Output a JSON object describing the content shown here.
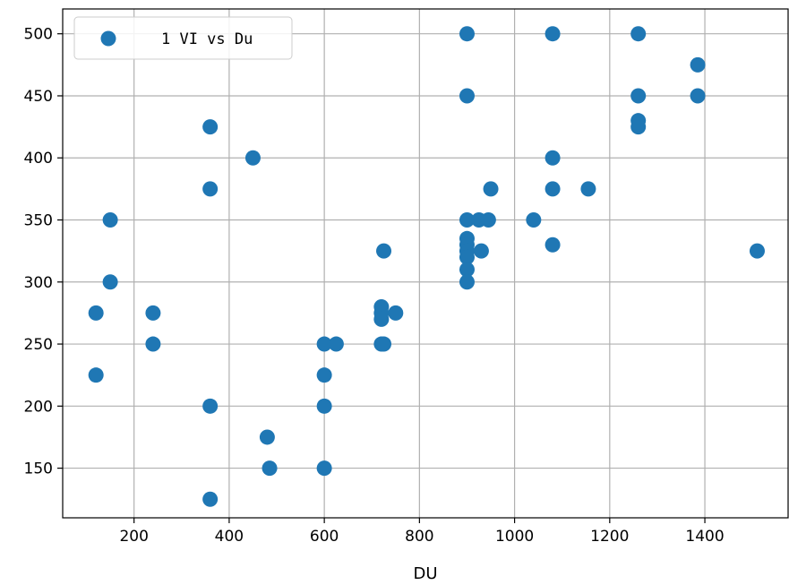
{
  "chart_data": {
    "type": "scatter",
    "title": "",
    "xlabel": "DU",
    "ylabel": "",
    "xlim": [
      50,
      1575
    ],
    "ylim": [
      110,
      520
    ],
    "xticks": [
      200,
      400,
      600,
      800,
      1000,
      1200,
      1400
    ],
    "yticks": [
      150,
      200,
      250,
      300,
      350,
      400,
      450,
      500
    ],
    "grid": true,
    "legend_position": "top-left",
    "series": [
      {
        "name": "1 VI vs Du",
        "color": "#1f77b4",
        "marker": "circle",
        "points": [
          [
            120,
            275
          ],
          [
            120,
            225
          ],
          [
            150,
            350
          ],
          [
            150,
            300
          ],
          [
            240,
            275
          ],
          [
            240,
            250
          ],
          [
            360,
            425
          ],
          [
            360,
            375
          ],
          [
            360,
            200
          ],
          [
            360,
            125
          ],
          [
            450,
            400
          ],
          [
            480,
            175
          ],
          [
            485,
            150
          ],
          [
            600,
            250
          ],
          [
            600,
            225
          ],
          [
            600,
            200
          ],
          [
            600,
            150
          ],
          [
            625,
            250
          ],
          [
            720,
            280
          ],
          [
            720,
            275
          ],
          [
            720,
            270
          ],
          [
            720,
            250
          ],
          [
            725,
            250
          ],
          [
            725,
            325
          ],
          [
            750,
            275
          ],
          [
            900,
            500
          ],
          [
            900,
            450
          ],
          [
            900,
            350
          ],
          [
            900,
            335
          ],
          [
            900,
            330
          ],
          [
            900,
            325
          ],
          [
            900,
            320
          ],
          [
            900,
            310
          ],
          [
            900,
            300
          ],
          [
            925,
            350
          ],
          [
            930,
            325
          ],
          [
            945,
            350
          ],
          [
            950,
            375
          ],
          [
            1040,
            350
          ],
          [
            1080,
            500
          ],
          [
            1080,
            400
          ],
          [
            1080,
            375
          ],
          [
            1080,
            330
          ],
          [
            1155,
            375
          ],
          [
            1260,
            500
          ],
          [
            1260,
            450
          ],
          [
            1260,
            430
          ],
          [
            1260,
            425
          ],
          [
            1385,
            475
          ],
          [
            1385,
            450
          ],
          [
            1510,
            325
          ]
        ]
      }
    ]
  }
}
